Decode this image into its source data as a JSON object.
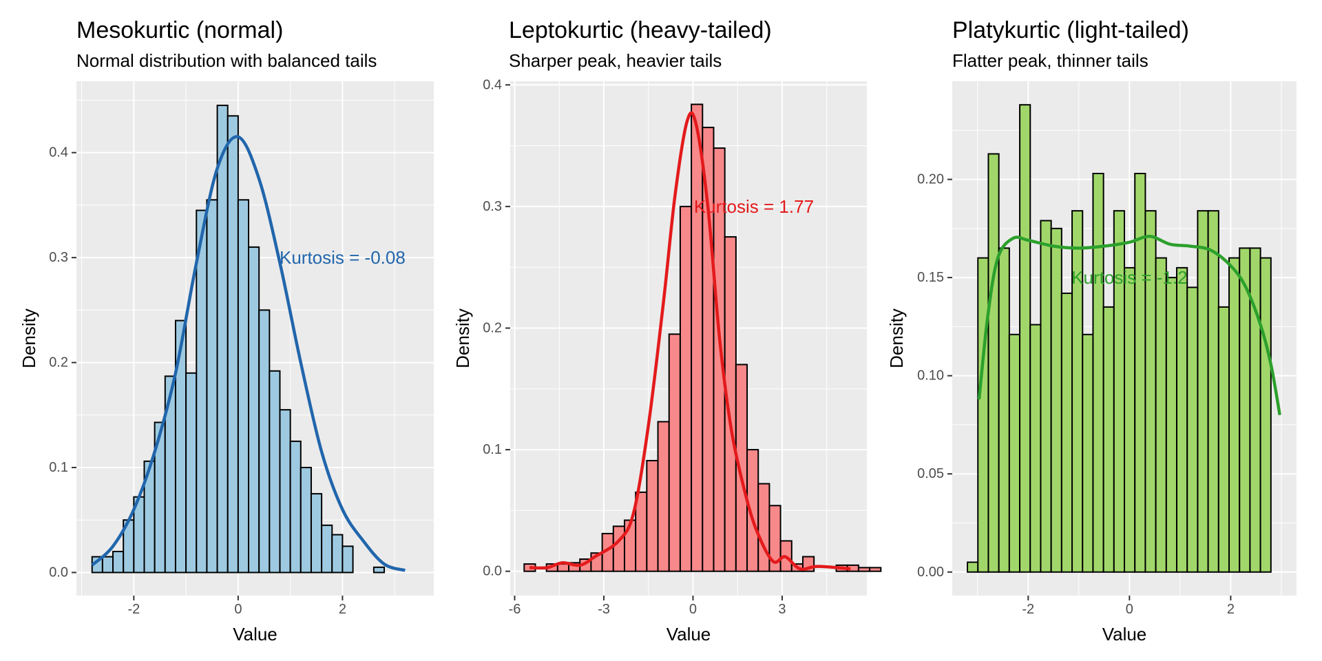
{
  "chart_data": [
    {
      "type": "bar",
      "title": "Mesokurtic (normal)",
      "subtitle": "Normal distribution with balanced tails",
      "xlabel": "Value",
      "ylabel": "Density",
      "xlim": [
        -3.1,
        3.75
      ],
      "ylim": [
        -0.022,
        0.468
      ],
      "xticks": [
        -2,
        0,
        2
      ],
      "xtick_labels": [
        "-2",
        "0",
        "2"
      ],
      "yticks": [
        0.0,
        0.1,
        0.2,
        0.3,
        0.4
      ],
      "ytick_labels": [
        "0.0",
        "0.1",
        "0.2",
        "0.3",
        "0.4"
      ],
      "bin_start": -2.8,
      "bin_width": 0.2,
      "values": [
        0.015,
        0.015,
        0.02,
        0.05,
        0.072,
        0.106,
        0.143,
        0.187,
        0.24,
        0.19,
        0.345,
        0.355,
        0.445,
        0.435,
        0.355,
        0.31,
        0.25,
        0.192,
        0.155,
        0.125,
        0.1,
        0.075,
        0.045,
        0.036,
        0.025,
        0.0,
        0.0,
        0.005
      ],
      "density_curve": [
        [
          -2.8,
          0.007
        ],
        [
          -2.4,
          0.025
        ],
        [
          -2.0,
          0.06
        ],
        [
          -1.6,
          0.115
        ],
        [
          -1.2,
          0.19
        ],
        [
          -0.8,
          0.295
        ],
        [
          -0.4,
          0.385
        ],
        [
          0.0,
          0.415
        ],
        [
          0.4,
          0.375
        ],
        [
          0.8,
          0.295
        ],
        [
          1.2,
          0.2
        ],
        [
          1.6,
          0.115
        ],
        [
          2.0,
          0.06
        ],
        [
          2.4,
          0.03
        ],
        [
          2.8,
          0.008
        ],
        [
          3.2,
          0.002
        ]
      ],
      "annotation": {
        "text": "Kurtosis = -0.08",
        "x": 2.0,
        "y": 0.3
      },
      "colors": {
        "fill": "#9ecae1",
        "line": "#2166ac",
        "annotation": "#2166ac"
      }
    },
    {
      "type": "bar",
      "title": "Leptokurtic (heavy-tailed)",
      "subtitle": "Sharper peak, heavier tails",
      "xlabel": "Value",
      "ylabel": "Density",
      "xlim": [
        -6.15,
        5.85
      ],
      "ylim": [
        -0.02,
        0.403
      ],
      "xticks": [
        -6,
        -3,
        0,
        3
      ],
      "xtick_labels": [
        "-6",
        "-3",
        "0",
        "3"
      ],
      "yticks": [
        0.0,
        0.1,
        0.2,
        0.3,
        0.4
      ],
      "ytick_labels": [
        "0.0",
        "0.1",
        "0.2",
        "0.3",
        "0.4"
      ],
      "bin_start": -5.68,
      "bin_width": 0.375,
      "values": [
        0.006,
        0.0,
        0.006,
        0.006,
        0.007,
        0.01,
        0.015,
        0.031,
        0.037,
        0.042,
        0.065,
        0.091,
        0.123,
        0.195,
        0.3,
        0.384,
        0.365,
        0.348,
        0.275,
        0.17,
        0.1,
        0.072,
        0.054,
        0.025,
        0.006,
        0.012,
        0.0,
        0.0,
        0.005,
        0.005,
        0.003,
        0.003
      ],
      "density_curve": [
        [
          -5.5,
          0.003
        ],
        [
          -4.9,
          0.003
        ],
        [
          -4.4,
          0.007
        ],
        [
          -3.8,
          0.005
        ],
        [
          -3.3,
          0.012
        ],
        [
          -2.5,
          0.025
        ],
        [
          -2.0,
          0.048
        ],
        [
          -1.5,
          0.12
        ],
        [
          -1.0,
          0.22
        ],
        [
          -0.6,
          0.31
        ],
        [
          -0.2,
          0.37
        ],
        [
          0.1,
          0.368
        ],
        [
          0.5,
          0.3
        ],
        [
          0.9,
          0.19
        ],
        [
          1.3,
          0.115
        ],
        [
          1.8,
          0.06
        ],
        [
          2.2,
          0.03
        ],
        [
          2.7,
          0.008
        ],
        [
          3.1,
          0.012
        ],
        [
          3.6,
          0.002
        ],
        [
          4.2,
          0.004
        ],
        [
          5.3,
          0.002
        ]
      ],
      "annotation": {
        "text": "Kurtosis = 1.77",
        "x": 2.05,
        "y": 0.3
      },
      "colors": {
        "fill": "#f8898a",
        "line": "#e31a1c",
        "annotation": "#e31a1c"
      }
    },
    {
      "type": "bar",
      "title": "Platykurtic (light-tailed)",
      "subtitle": "Flatter peak, thinner tails",
      "xlabel": "Value",
      "ylabel": "Density",
      "xlim": [
        -3.5,
        3.3
      ],
      "ylim": [
        -0.012,
        0.25
      ],
      "xticks": [
        -2,
        0,
        2
      ],
      "xtick_labels": [
        "-2",
        "0",
        "2"
      ],
      "yticks": [
        0.0,
        0.05,
        0.1,
        0.15,
        0.2
      ],
      "ytick_labels": [
        "0.00",
        "0.05",
        "0.10",
        "0.15",
        "0.20"
      ],
      "bin_start": -3.2,
      "bin_width": 0.2067,
      "values": [
        0.005,
        0.16,
        0.213,
        0.165,
        0.121,
        0.238,
        0.126,
        0.179,
        0.175,
        0.142,
        0.184,
        0.121,
        0.203,
        0.135,
        0.184,
        0.155,
        0.203,
        0.184,
        0.16,
        0.15,
        0.155,
        0.145,
        0.184,
        0.184,
        0.135,
        0.16,
        0.165,
        0.165,
        0.16
      ],
      "density_curve": [
        [
          -2.97,
          0.088
        ],
        [
          -2.8,
          0.13
        ],
        [
          -2.6,
          0.16
        ],
        [
          -2.3,
          0.17
        ],
        [
          -2.0,
          0.169
        ],
        [
          -1.5,
          0.166
        ],
        [
          -1.0,
          0.165
        ],
        [
          -0.5,
          0.166
        ],
        [
          0.0,
          0.168
        ],
        [
          0.4,
          0.171
        ],
        [
          0.8,
          0.167
        ],
        [
          1.2,
          0.166
        ],
        [
          1.6,
          0.164
        ],
        [
          2.0,
          0.156
        ],
        [
          2.3,
          0.145
        ],
        [
          2.6,
          0.125
        ],
        [
          2.8,
          0.105
        ],
        [
          2.97,
          0.08
        ]
      ],
      "annotation": {
        "text": "Kurtosis = -1.2",
        "x": 0.0,
        "y": 0.15
      },
      "colors": {
        "fill": "#a1d76a",
        "line": "#2ca02c",
        "annotation": "#2ca02c"
      }
    }
  ]
}
